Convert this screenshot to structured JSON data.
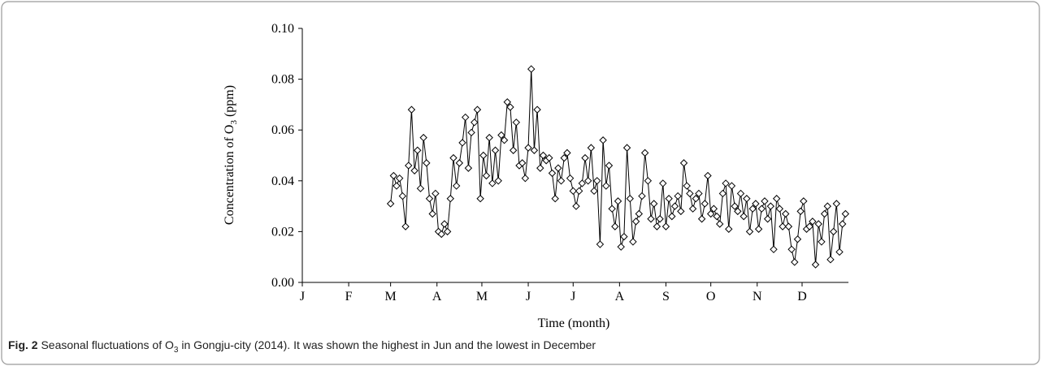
{
  "chart_data": {
    "type": "line",
    "ylabel_parts": [
      "Concentration of O",
      "3",
      " (ppm)"
    ],
    "xlabel": "Time (month)",
    "caption": {
      "label": "Fig. 2",
      "parts": [
        " Seasonal fluctuations of O",
        "3",
        " in Gongju-city (2014). It was shown the highest in Jun and the lowest in December"
      ]
    },
    "xlim": [
      0,
      365
    ],
    "xticks": [
      {
        "value": 0,
        "label": "J"
      },
      {
        "value": 31,
        "label": "F"
      },
      {
        "value": 59,
        "label": "M"
      },
      {
        "value": 90,
        "label": "A"
      },
      {
        "value": 120,
        "label": "M"
      },
      {
        "value": 151,
        "label": "J"
      },
      {
        "value": 181,
        "label": "J"
      },
      {
        "value": 212,
        "label": "A"
      },
      {
        "value": 243,
        "label": "S"
      },
      {
        "value": 273,
        "label": "O"
      },
      {
        "value": 304,
        "label": "N"
      },
      {
        "value": 334,
        "label": "D"
      }
    ],
    "ylim": [
      0,
      0.1
    ],
    "yticks": [
      {
        "value": 0,
        "label": "0.00"
      },
      0.02,
      0.04,
      0.06,
      0.08,
      {
        "value": 0.1,
        "label": "0.10"
      }
    ],
    "color": "#000000",
    "x": [
      59,
      61,
      63,
      65,
      67,
      69,
      71,
      73,
      75,
      77,
      79,
      81,
      83,
      85,
      87,
      89,
      91,
      93,
      95,
      97,
      99,
      101,
      103,
      105,
      107,
      109,
      111,
      113,
      115,
      117,
      119,
      121,
      123,
      125,
      127,
      129,
      131,
      133,
      135,
      137,
      139,
      141,
      143,
      145,
      147,
      149,
      151,
      153,
      155,
      157,
      159,
      161,
      163,
      165,
      167,
      169,
      171,
      173,
      175,
      177,
      179,
      181,
      183,
      185,
      187,
      189,
      191,
      193,
      195,
      197,
      199,
      201,
      203,
      205,
      207,
      209,
      211,
      213,
      215,
      217,
      219,
      221,
      223,
      225,
      227,
      229,
      231,
      233,
      235,
      237,
      239,
      241,
      243,
      245,
      247,
      249,
      251,
      253,
      255,
      257,
      259,
      261,
      263,
      265,
      267,
      269,
      271,
      273,
      275,
      277,
      279,
      281,
      283,
      285,
      287,
      289,
      291,
      293,
      295,
      297,
      299,
      301,
      303,
      305,
      307,
      309,
      311,
      313,
      315,
      317,
      319,
      321,
      323,
      325,
      327,
      329,
      331,
      333,
      335,
      337,
      339,
      341,
      343,
      345,
      347,
      349,
      351,
      353,
      355,
      357,
      359,
      361,
      363
    ],
    "values": [
      0.031,
      0.042,
      0.038,
      0.041,
      0.034,
      0.022,
      0.046,
      0.068,
      0.044,
      0.052,
      0.037,
      0.057,
      0.047,
      0.033,
      0.027,
      0.035,
      0.02,
      0.019,
      0.023,
      0.02,
      0.033,
      0.049,
      0.038,
      0.047,
      0.055,
      0.065,
      0.045,
      0.059,
      0.063,
      0.068,
      0.033,
      0.05,
      0.042,
      0.057,
      0.039,
      0.052,
      0.04,
      0.058,
      0.056,
      0.071,
      0.069,
      0.052,
      0.063,
      0.046,
      0.047,
      0.041,
      0.053,
      0.084,
      0.052,
      0.068,
      0.045,
      0.05,
      0.048,
      0.049,
      0.043,
      0.033,
      0.045,
      0.04,
      0.049,
      0.051,
      0.041,
      0.036,
      0.03,
      0.036,
      0.039,
      0.049,
      0.04,
      0.053,
      0.036,
      0.04,
      0.015,
      0.056,
      0.038,
      0.046,
      0.029,
      0.022,
      0.032,
      0.014,
      0.018,
      0.053,
      0.033,
      0.016,
      0.024,
      0.027,
      0.034,
      0.051,
      0.04,
      0.025,
      0.031,
      0.022,
      0.025,
      0.039,
      0.022,
      0.033,
      0.026,
      0.03,
      0.034,
      0.028,
      0.047,
      0.038,
      0.035,
      0.029,
      0.033,
      0.035,
      0.025,
      0.031,
      0.042,
      0.027,
      0.029,
      0.026,
      0.023,
      0.035,
      0.039,
      0.021,
      0.038,
      0.03,
      0.028,
      0.035,
      0.026,
      0.033,
      0.02,
      0.029,
      0.031,
      0.021,
      0.029,
      0.032,
      0.025,
      0.03,
      0.013,
      0.033,
      0.029,
      0.022,
      0.027,
      0.022,
      0.013,
      0.008,
      0.017,
      0.028,
      0.032,
      0.021,
      0.022,
      0.024,
      0.007,
      0.023,
      0.016,
      0.027,
      0.03,
      0.009,
      0.02,
      0.031,
      0.012,
      0.023,
      0.027
    ]
  }
}
